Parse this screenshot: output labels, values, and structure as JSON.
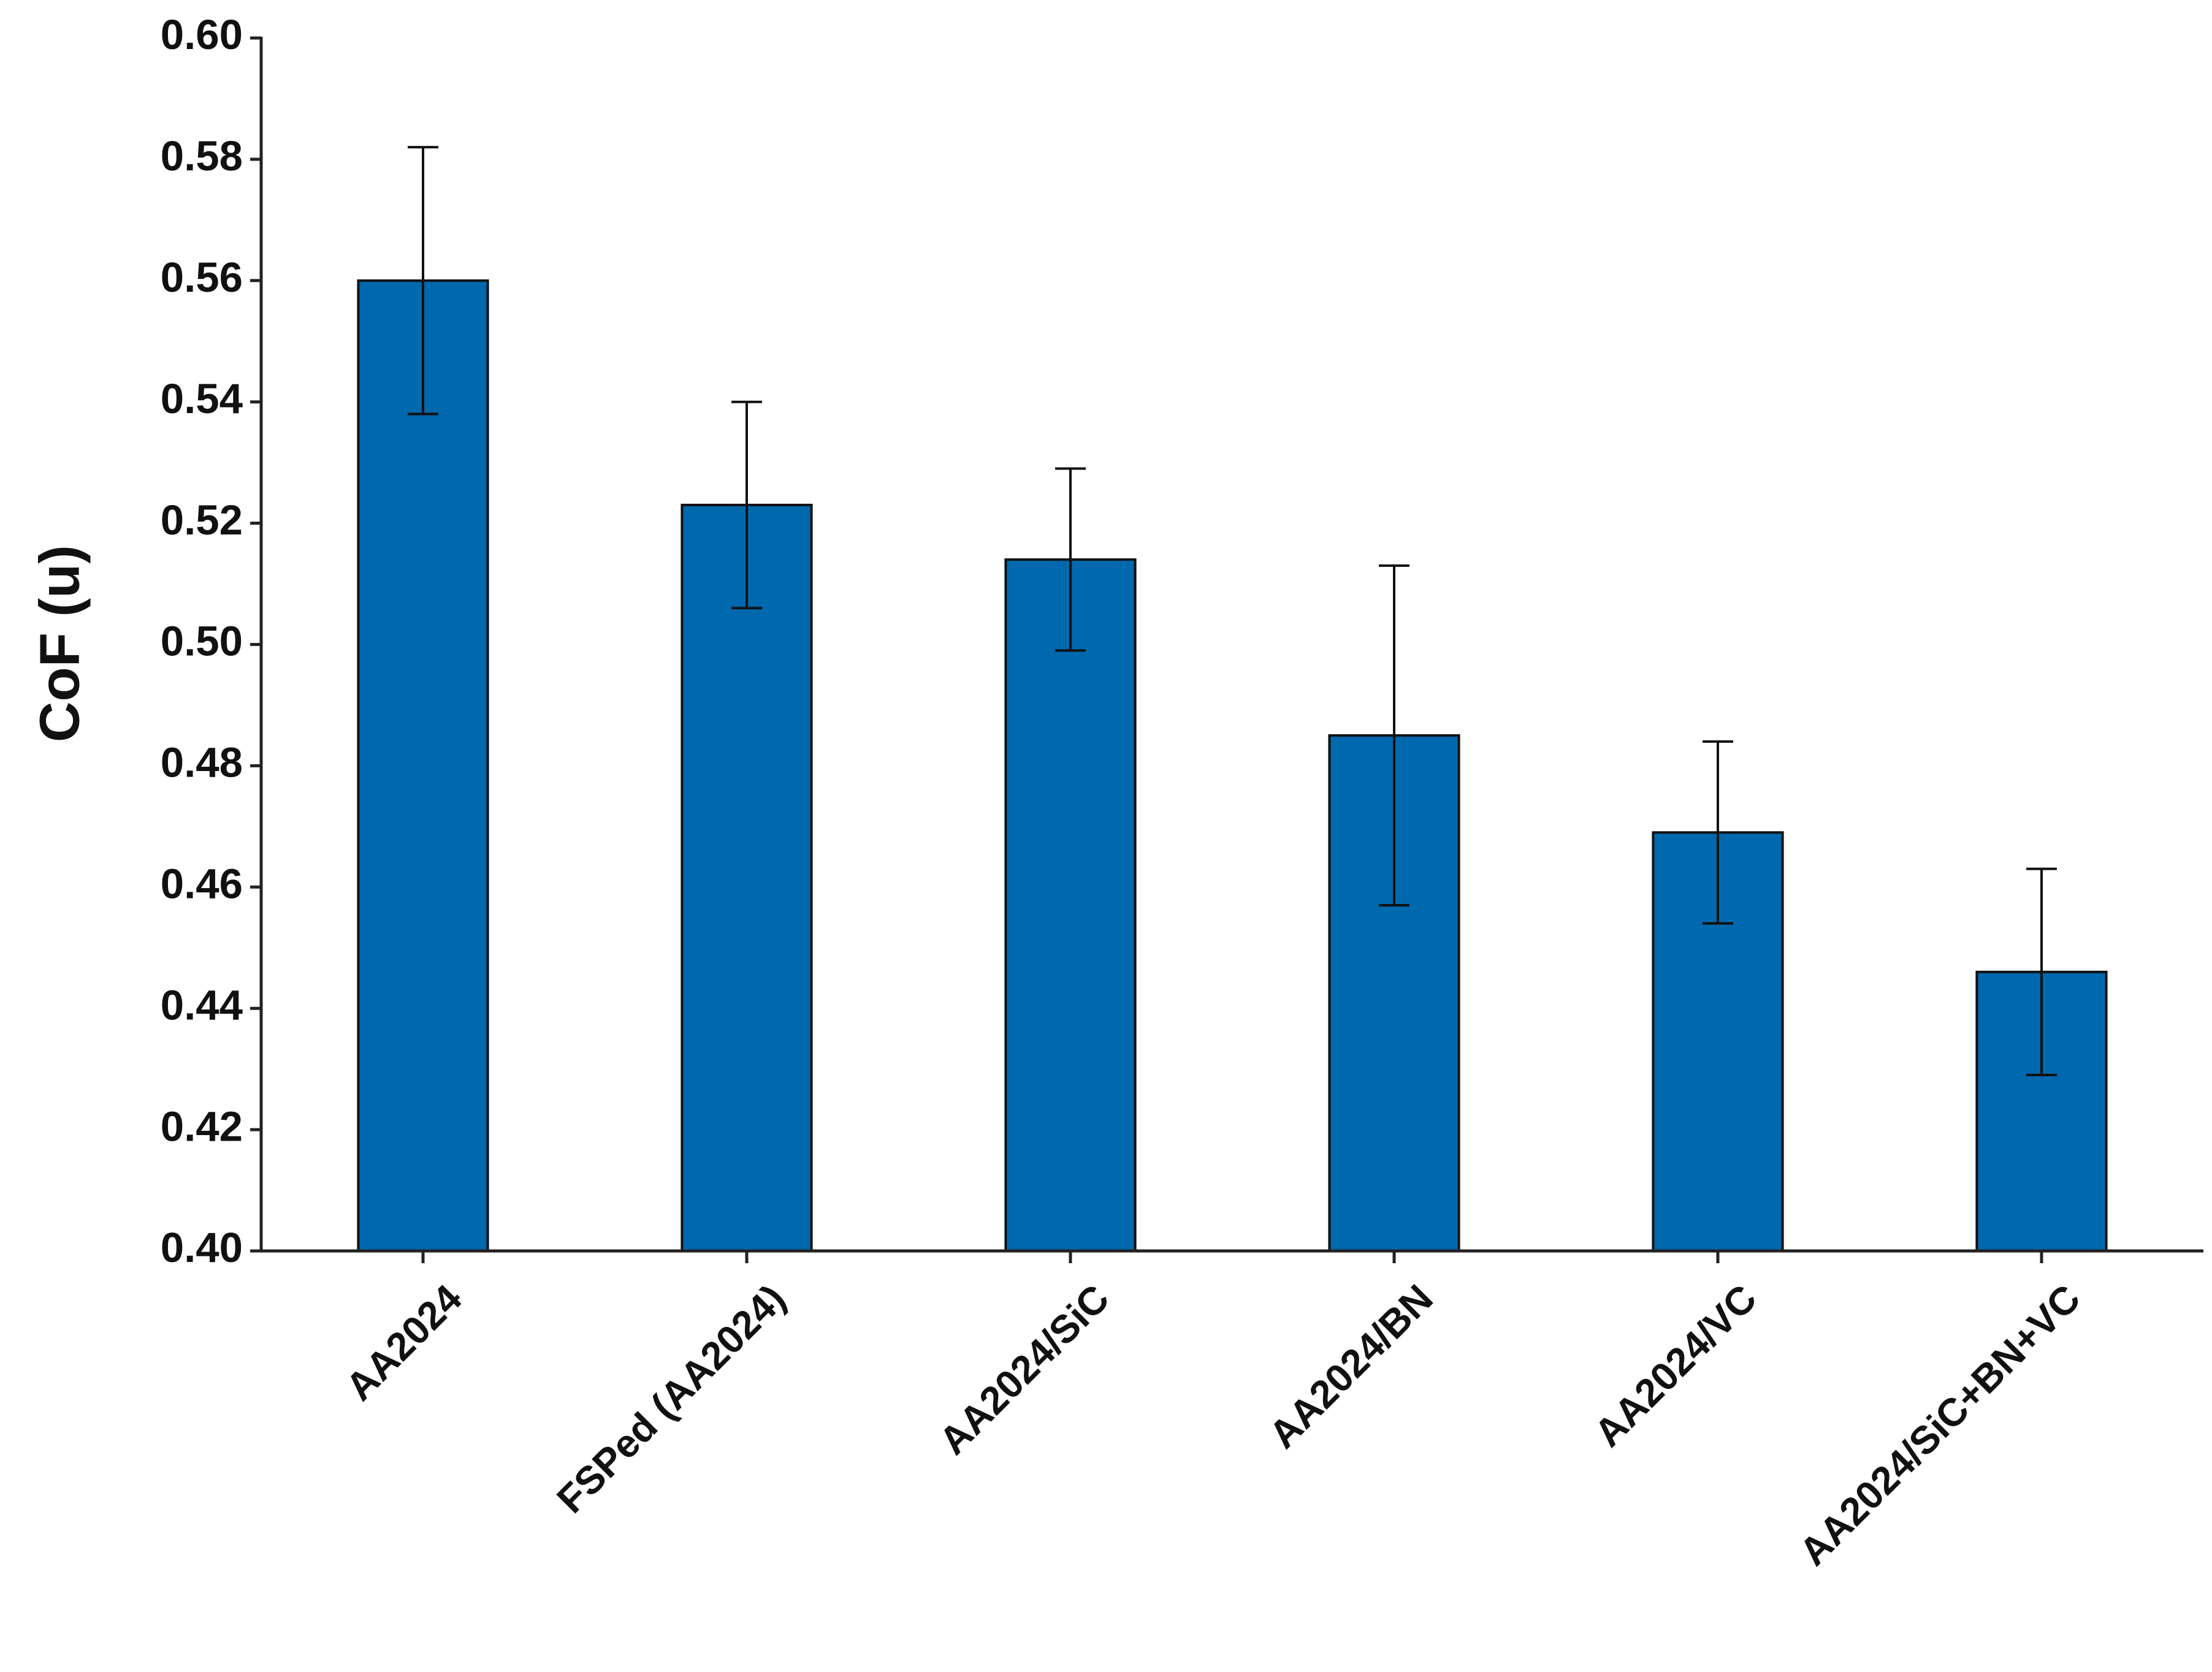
{
  "chart_data": {
    "type": "bar",
    "y_label": "CoF (u)",
    "categories": [
      "AA2024",
      "FSPed (AA2024)",
      "AA2024/SiC",
      "AA2024/BN",
      "AA2024/VC",
      "AA2024/SiC+BN+VC"
    ],
    "values": [
      0.56,
      0.523,
      0.514,
      0.485,
      0.469,
      0.446
    ],
    "errors": [
      0.022,
      0.017,
      0.015,
      0.028,
      0.015,
      0.017
    ],
    "color": "#0068ad",
    "ylim": [
      0.4,
      0.6
    ],
    "yticks": [
      {
        "value": 0.4,
        "label": "0.40"
      },
      {
        "value": 0.42,
        "label": "0.42"
      },
      {
        "value": 0.44,
        "label": "0.44"
      },
      {
        "value": 0.46,
        "label": "0.46"
      },
      {
        "value": 0.48,
        "label": "0.48"
      },
      {
        "value": 0.5,
        "label": "0.50"
      },
      {
        "value": 0.52,
        "label": "0.52"
      },
      {
        "value": 0.54,
        "label": "0.54"
      },
      {
        "value": 0.56,
        "label": "0.56"
      },
      {
        "value": 0.58,
        "label": "0.58"
      },
      {
        "value": 0.6,
        "label": "0.60"
      }
    ],
    "grid": false
  }
}
